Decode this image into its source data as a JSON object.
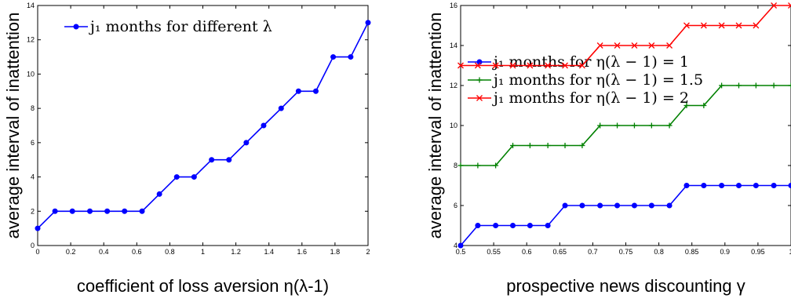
{
  "chart_data": [
    {
      "type": "line",
      "xlabel": "coefficient of loss aversion η(λ-1)",
      "ylabel": "average interval of inattention",
      "xlim": [
        0,
        2
      ],
      "ylim": [
        0,
        14
      ],
      "xticks": [
        "0",
        "0.2",
        "0.4",
        "0.6",
        "0.8",
        "1",
        "1.2",
        "1.4",
        "1.6",
        "1.8",
        "2"
      ],
      "yticks": [
        "0",
        "2",
        "4",
        "6",
        "8",
        "10",
        "12",
        "14"
      ],
      "grid": false,
      "legend_position": "top-left",
      "series": [
        {
          "name": "j₁ months for different λ",
          "color": "#0000ff",
          "marker": "dot",
          "x": [
            0,
            0.105,
            0.21,
            0.316,
            0.421,
            0.526,
            0.632,
            0.737,
            0.842,
            0.947,
            1.053,
            1.158,
            1.263,
            1.368,
            1.474,
            1.579,
            1.684,
            1.789,
            1.895,
            2.0
          ],
          "y": [
            1,
            2,
            2,
            2,
            2,
            2,
            2,
            3,
            4,
            4,
            5,
            5,
            6,
            7,
            8,
            9,
            9,
            11,
            11,
            13
          ]
        }
      ]
    },
    {
      "type": "line",
      "xlabel": "prospective news discounting γ",
      "ylabel": "average interval of inattention",
      "xlim": [
        0.5,
        1
      ],
      "ylim": [
        4,
        16
      ],
      "xticks": [
        "0.5",
        "0.55",
        "0.6",
        "0.65",
        "0.7",
        "0.75",
        "0.8",
        "0.85",
        "0.9",
        "0.95",
        "1"
      ],
      "yticks": [
        "4",
        "6",
        "8",
        "10",
        "12",
        "14",
        "16"
      ],
      "grid": false,
      "legend_position": "top-left",
      "series": [
        {
          "name": "j₁ months for η(λ − 1) = 1",
          "color": "#0000ff",
          "marker": "dot",
          "x": [
            0.5,
            0.526,
            0.553,
            0.579,
            0.605,
            0.632,
            0.658,
            0.684,
            0.711,
            0.737,
            0.763,
            0.789,
            0.816,
            0.842,
            0.868,
            0.895,
            0.921,
            0.947,
            0.974,
            1.0
          ],
          "y": [
            4,
            5,
            5,
            5,
            5,
            5,
            6,
            6,
            6,
            6,
            6,
            6,
            6,
            7,
            7,
            7,
            7,
            7,
            7,
            7
          ]
        },
        {
          "name": "j₁ months for η(λ − 1) = 1.5",
          "color": "#008000",
          "marker": "plus",
          "x": [
            0.5,
            0.526,
            0.553,
            0.579,
            0.605,
            0.632,
            0.658,
            0.684,
            0.711,
            0.737,
            0.763,
            0.789,
            0.816,
            0.842,
            0.868,
            0.895,
            0.921,
            0.947,
            0.974,
            1.0
          ],
          "y": [
            8,
            8,
            8,
            9,
            9,
            9,
            9,
            9,
            10,
            10,
            10,
            10,
            10,
            11,
            11,
            12,
            12,
            12,
            12,
            12
          ]
        },
        {
          "name": "j₁ months for η(λ − 1) = 2",
          "color": "#ff0000",
          "marker": "x",
          "x": [
            0.5,
            0.526,
            0.553,
            0.579,
            0.605,
            0.632,
            0.658,
            0.684,
            0.711,
            0.737,
            0.763,
            0.789,
            0.816,
            0.842,
            0.868,
            0.895,
            0.921,
            0.947,
            0.974,
            1.0
          ],
          "y": [
            13,
            13,
            13,
            13,
            13,
            13,
            13,
            13,
            14,
            14,
            14,
            14,
            14,
            15,
            15,
            15,
            15,
            15,
            16,
            16
          ]
        }
      ]
    }
  ]
}
